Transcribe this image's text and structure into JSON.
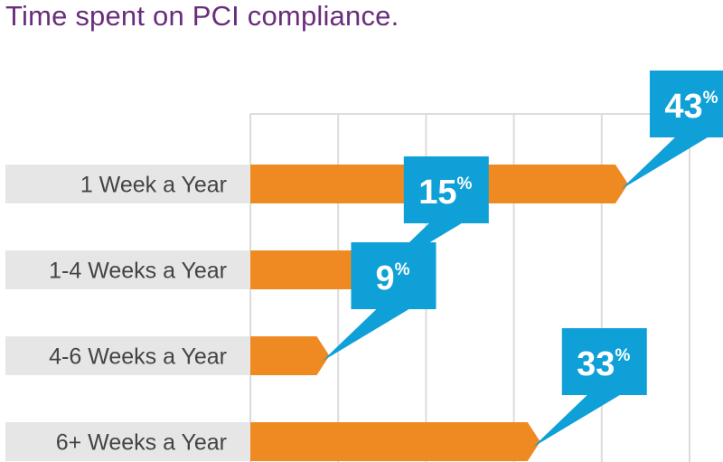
{
  "chart_data": {
    "type": "bar",
    "orientation": "horizontal",
    "title": "Time spent on PCI compliance.",
    "categories": [
      "1 Week a Year",
      "1-4 Weeks a Year",
      "4-6 Weeks a Year",
      "6+ Weeks a Year"
    ],
    "values": [
      43,
      15,
      9,
      33
    ],
    "value_suffix": "%",
    "xlim": [
      0,
      50
    ],
    "gridlines": [
      0,
      10,
      20,
      30,
      40,
      50
    ],
    "grid": true,
    "legend": "none",
    "xlabel": "",
    "ylabel": ""
  },
  "colors": {
    "title": "#6a2c7c",
    "bar": "#ef8a22",
    "callout": "#0ea0d7",
    "label_bg": "#e6e6e6",
    "grid": "#dcdcdc"
  }
}
